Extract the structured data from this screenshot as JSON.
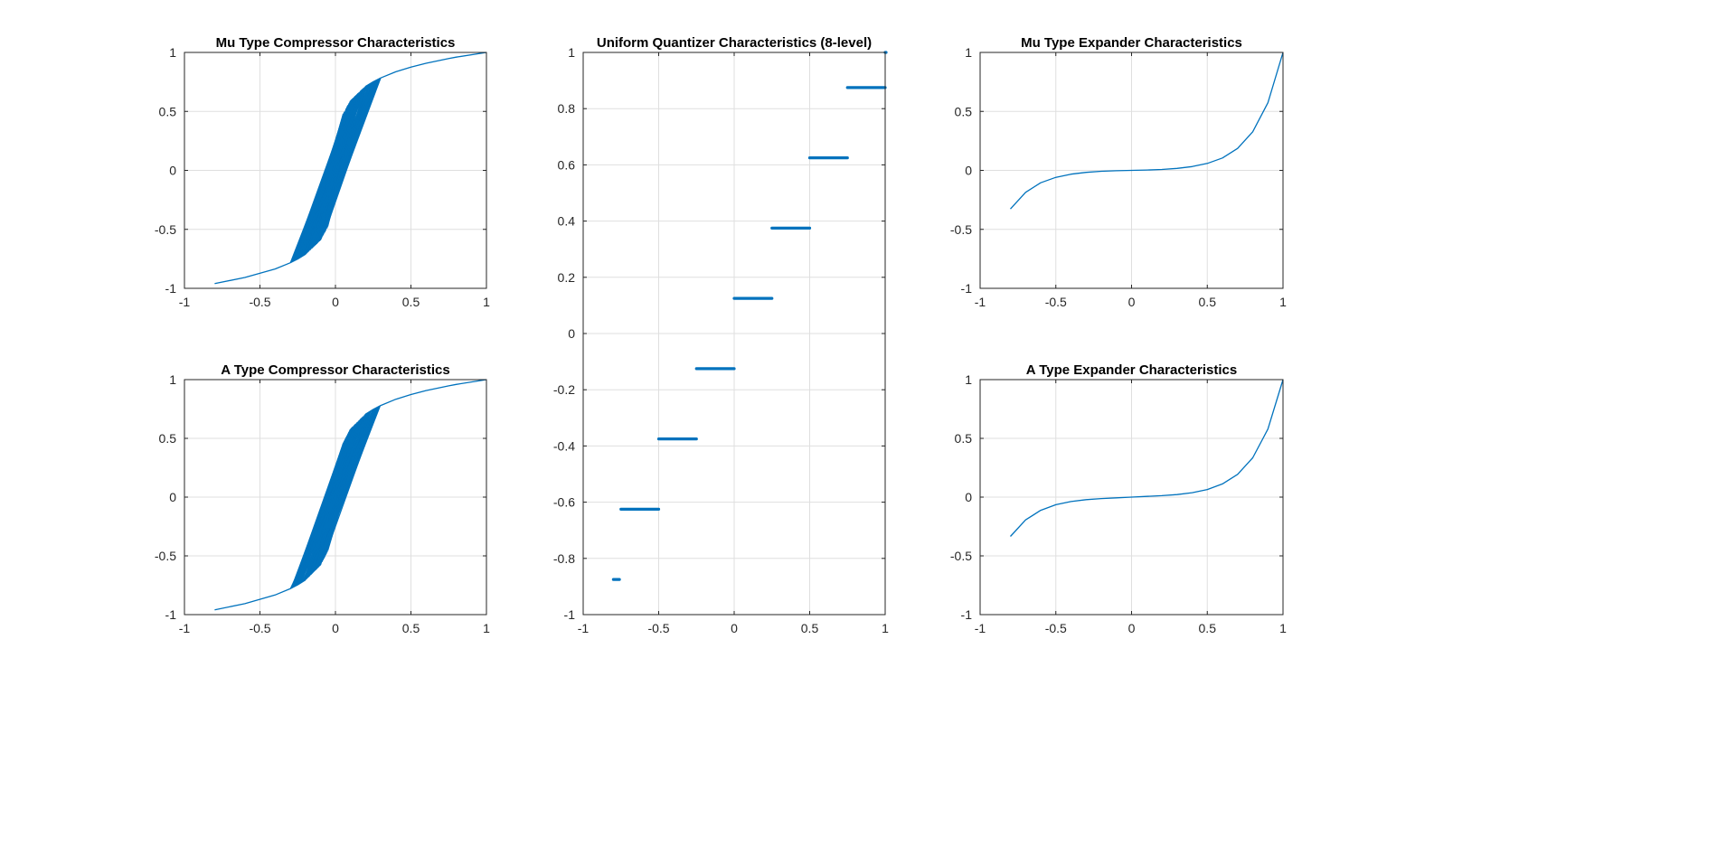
{
  "chart_data": [
    {
      "type": "line",
      "title": "Mu Type Compressor Characteristics",
      "xlim": [
        -1,
        1
      ],
      "ylim": [
        -1,
        1
      ],
      "xticks": [
        -1,
        -0.5,
        0,
        0.5,
        1
      ],
      "yticks": [
        -1,
        -0.5,
        0,
        0.5,
        1
      ],
      "xtick_labels": [
        "-1",
        "-0.5",
        "0",
        "0.5",
        "1"
      ],
      "ytick_labels": [
        "-1",
        "-0.5",
        "0",
        "0.5",
        "1"
      ],
      "grid": true,
      "color": "#0072BD",
      "x": [
        -0.8,
        -0.6,
        -0.4,
        -0.3,
        -0.25,
        -0.2,
        0.2,
        0.25,
        0.3,
        0.4,
        0.5,
        0.6,
        0.75,
        0.8,
        1.0
      ],
      "y": [
        -0.96,
        -0.908,
        -0.836,
        -0.784,
        -0.752,
        -0.713,
        0.713,
        0.752,
        0.784,
        0.836,
        0.876,
        0.908,
        0.948,
        0.96,
        1.0
      ],
      "band": {
        "x": [
          -0.3,
          -0.2,
          -0.1,
          -0.05,
          0.05,
          0.1,
          0.2,
          0.3
        ],
        "y": [
          -0.784,
          -0.713,
          -0.591,
          -0.473,
          0.473,
          0.591,
          0.713,
          0.784
        ]
      }
    },
    {
      "type": "line",
      "title": "A Type Compressor Characteristics",
      "xlim": [
        -1,
        1
      ],
      "ylim": [
        -1,
        1
      ],
      "xticks": [
        -1,
        -0.5,
        0,
        0.5,
        1
      ],
      "yticks": [
        -1,
        -0.5,
        0,
        0.5,
        1
      ],
      "xtick_labels": [
        "-1",
        "-0.5",
        "0",
        "0.5",
        "1"
      ],
      "ytick_labels": [
        "-1",
        "-0.5",
        "0",
        "0.5",
        "1"
      ],
      "grid": true,
      "color": "#0072BD",
      "x": [
        -0.8,
        -0.6,
        -0.4,
        -0.3,
        -0.25,
        -0.2,
        0.2,
        0.25,
        0.3,
        0.4,
        0.5,
        0.6,
        0.75,
        0.8,
        1.0
      ],
      "y": [
        -0.959,
        -0.907,
        -0.833,
        -0.78,
        -0.747,
        -0.706,
        0.706,
        0.747,
        0.78,
        0.833,
        0.873,
        0.907,
        0.947,
        0.959,
        1.0
      ],
      "band": {
        "x": [
          -0.3,
          -0.2,
          -0.1,
          -0.05,
          0.05,
          0.1,
          0.2,
          0.3
        ],
        "y": [
          -0.78,
          -0.706,
          -0.579,
          -0.453,
          0.453,
          0.579,
          0.706,
          0.78
        ]
      }
    },
    {
      "type": "line",
      "title": "Uniform Quantizer Characteristics (8-level)",
      "xlim": [
        -1,
        1
      ],
      "ylim": [
        -1,
        1
      ],
      "xticks": [
        -1,
        -0.5,
        0,
        0.5,
        1
      ],
      "yticks": [
        -1,
        -0.8,
        -0.6,
        -0.4,
        -0.2,
        0,
        0.2,
        0.4,
        0.6,
        0.8,
        1
      ],
      "xtick_labels": [
        "-1",
        "-0.5",
        "0",
        "0.5",
        "1"
      ],
      "ytick_labels": [
        "-1",
        "-0.8",
        "-0.6",
        "-0.4",
        "-0.2",
        "0",
        "0.2",
        "0.4",
        "0.6",
        "0.8",
        "1"
      ],
      "grid": true,
      "color": "#0072BD",
      "steps": [
        {
          "x0": -0.8,
          "x1": -0.76,
          "y": -0.875
        },
        {
          "x0": -0.75,
          "x1": -0.5,
          "y": -0.625
        },
        {
          "x0": -0.5,
          "x1": -0.25,
          "y": -0.375
        },
        {
          "x0": -0.25,
          "x1": 0,
          "y": -0.125
        },
        {
          "x0": 0,
          "x1": 0.25,
          "y": 0.125
        },
        {
          "x0": 0.25,
          "x1": 0.5,
          "y": 0.375
        },
        {
          "x0": 0.5,
          "x1": 0.75,
          "y": 0.625
        },
        {
          "x0": 0.75,
          "x1": 1.0,
          "y": 0.875
        },
        {
          "x0": 1.0,
          "x1": 1.0,
          "y": 1.0
        }
      ]
    },
    {
      "type": "line",
      "title": "Mu Type Expander Characteristics",
      "xlim": [
        -1,
        1
      ],
      "ylim": [
        -1,
        1
      ],
      "xticks": [
        -1,
        -0.5,
        0,
        0.5,
        1
      ],
      "yticks": [
        -1,
        -0.5,
        0,
        0.5,
        1
      ],
      "xtick_labels": [
        "-1",
        "-0.5",
        "0",
        "0.5",
        "1"
      ],
      "ytick_labels": [
        "-1",
        "-0.5",
        "0",
        "0.5",
        "1"
      ],
      "grid": true,
      "color": "#0072BD",
      "x": [
        -0.8,
        -0.7,
        -0.6,
        -0.5,
        -0.4,
        -0.3,
        -0.2,
        -0.1,
        0,
        0.1,
        0.2,
        0.3,
        0.4,
        0.5,
        0.6,
        0.7,
        0.8,
        0.9,
        1.0
      ],
      "y": [
        -0.327,
        -0.186,
        -0.105,
        -0.0588,
        -0.0321,
        -0.0168,
        -0.008,
        -0.0029,
        0,
        0.0029,
        0.008,
        0.0168,
        0.0321,
        0.0588,
        0.105,
        0.186,
        0.327,
        0.573,
        1.0
      ]
    },
    {
      "type": "line",
      "title": "A Type Expander Characteristics",
      "xlim": [
        -1,
        1
      ],
      "ylim": [
        -1,
        1
      ],
      "xticks": [
        -1,
        -0.5,
        0,
        0.5,
        1
      ],
      "yticks": [
        -1,
        -0.5,
        0,
        0.5,
        1
      ],
      "xtick_labels": [
        "-1",
        "-0.5",
        "0",
        "0.5",
        "1"
      ],
      "ytick_labels": [
        "-1",
        "-0.5",
        "0",
        "0.5",
        "1"
      ],
      "grid": true,
      "color": "#0072BD",
      "x": [
        -0.8,
        -0.7,
        -0.6,
        -0.5,
        -0.4,
        -0.3,
        -0.2,
        -0.1,
        0,
        0.1,
        0.2,
        0.3,
        0.4,
        0.5,
        0.6,
        0.7,
        0.8,
        0.9,
        1.0
      ],
      "y": [
        -0.335,
        -0.194,
        -0.112,
        -0.0648,
        -0.0375,
        -0.0217,
        -0.01255,
        -0.00625,
        0,
        0.00625,
        0.01255,
        0.0217,
        0.0375,
        0.0648,
        0.112,
        0.194,
        0.335,
        0.579,
        1.0
      ]
    }
  ]
}
